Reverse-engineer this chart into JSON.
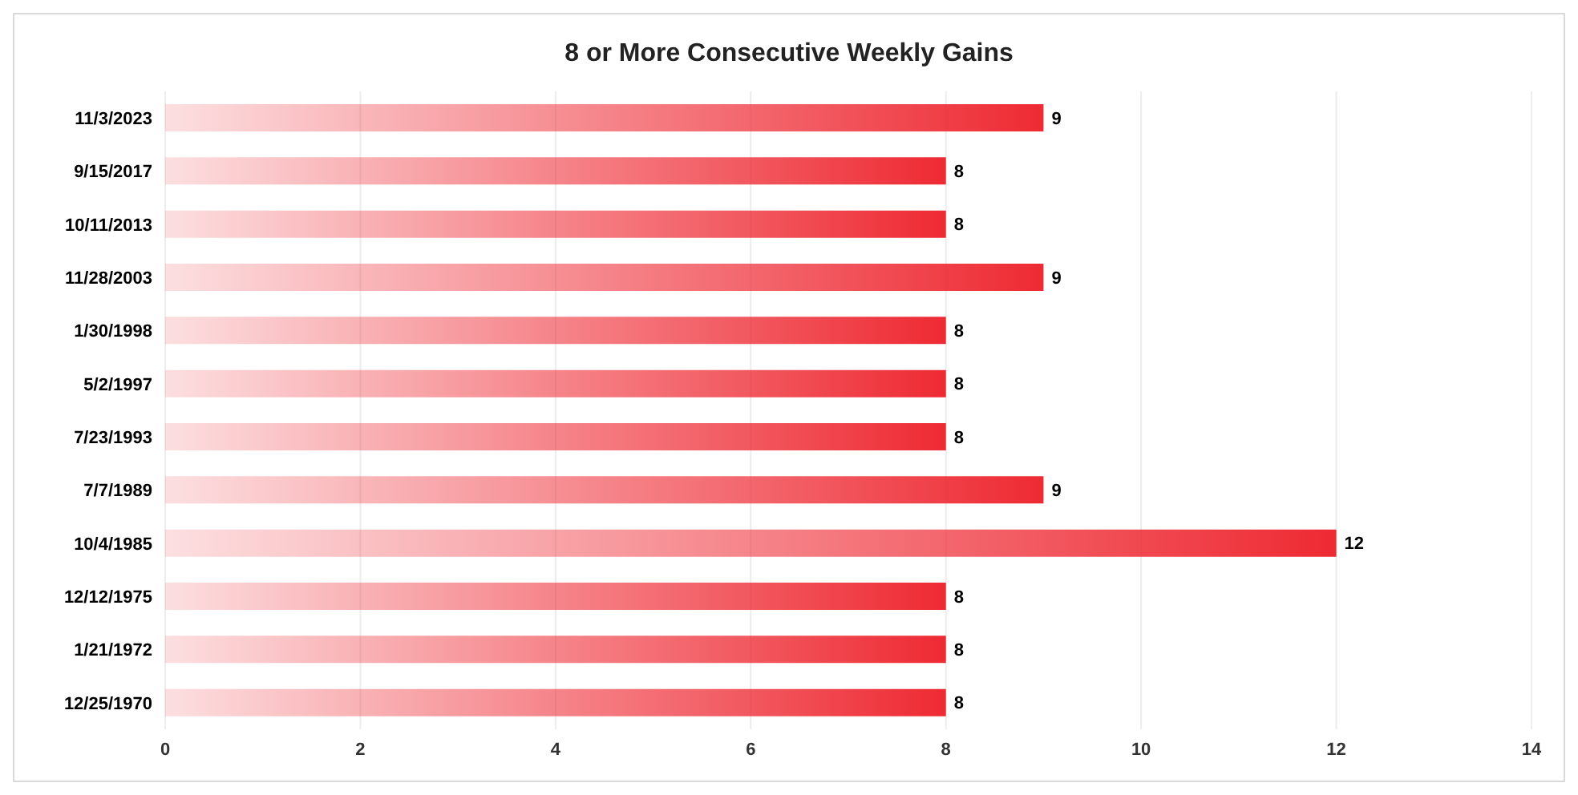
{
  "chart_data": {
    "type": "bar",
    "orientation": "horizontal",
    "title": "8 or More Consecutive Weekly Gains",
    "categories": [
      "11/3/2023",
      "9/15/2017",
      "10/11/2013",
      "11/28/2003",
      "1/30/1998",
      "5/2/1997",
      "7/23/1993",
      "7/7/1989",
      "10/4/1985",
      "12/12/1975",
      "1/21/1972",
      "12/25/1970"
    ],
    "values": [
      9,
      8,
      8,
      9,
      8,
      8,
      8,
      9,
      12,
      8,
      8,
      8
    ],
    "color": "#ee2a33",
    "xlim": [
      0,
      14
    ],
    "xticks": [
      0,
      2,
      4,
      6,
      8,
      10,
      12,
      14
    ],
    "grid": "x",
    "data_labels": true
  }
}
